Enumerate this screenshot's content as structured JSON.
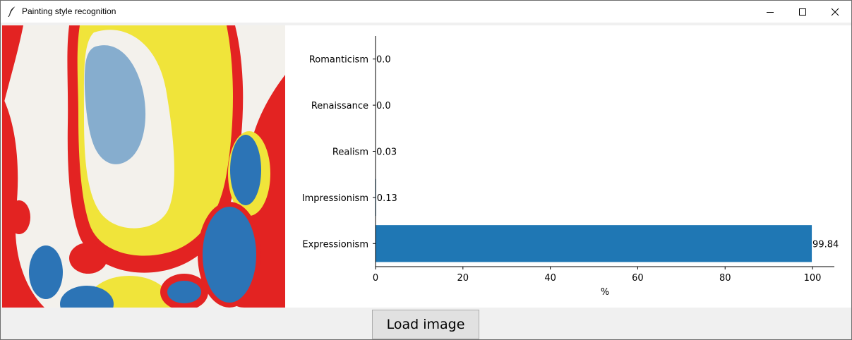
{
  "window": {
    "title": "Painting style recognition",
    "icons": [
      "feather-icon",
      "minimize-icon",
      "maximize-icon",
      "close-icon"
    ]
  },
  "painting": {
    "colors": {
      "red": "#e32322",
      "yellow": "#f0e43a",
      "blue": "#2c74b6",
      "white": "#f3f1ec"
    }
  },
  "chart_data": {
    "type": "bar",
    "orientation": "horizontal",
    "categories": [
      "Romanticism",
      "Renaissance",
      "Realism",
      "Impressionism",
      "Expressionism"
    ],
    "values": [
      0.0,
      0.0,
      0.03,
      0.13,
      99.84
    ],
    "value_labels": [
      "0.0",
      "0.0",
      "0.03",
      "0.13",
      "99.84"
    ],
    "title": "",
    "xlabel": "%",
    "ylabel": "",
    "xlim": [
      0,
      105
    ],
    "xticks": [
      0,
      20,
      40,
      60,
      80,
      100
    ],
    "xtick_labels": [
      "0",
      "20",
      "40",
      "60",
      "80",
      "100"
    ],
    "grid": false,
    "bar_color": "#1f77b4"
  },
  "controls": {
    "load_label": "Load image"
  }
}
